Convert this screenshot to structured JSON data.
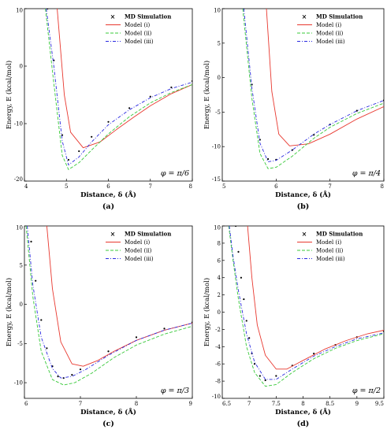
{
  "figure": {
    "panels": [
      {
        "caption": "(a)",
        "phi_label": "φ = π/6"
      },
      {
        "caption": "(b)",
        "phi_label": "φ = π/4"
      },
      {
        "caption": "(c)",
        "phi_label": "φ = π/3"
      },
      {
        "caption": "(d)",
        "phi_label": "φ = π/2"
      }
    ]
  },
  "colors": {
    "md_simulation": "#000000",
    "model_i": "#e8382f",
    "model_ii": "#38c93a",
    "model_iii": "#2a2ae0"
  },
  "chart_data": [
    {
      "type": "line",
      "xlabel": "Distance, δ (Å)",
      "ylabel": "Energy, E (kcal/mol)",
      "xlim": [
        4,
        8
      ],
      "ylim": [
        -20,
        10
      ],
      "xticks": [
        "4",
        "5",
        "6",
        "7",
        "8"
      ],
      "yticks": [
        "10",
        "0",
        "-10",
        "-20"
      ],
      "legend": "top-right",
      "series": [
        {
          "name": "MD Simulation",
          "style": "points",
          "x": [
            4.55,
            4.7,
            4.9,
            5.05,
            5.3,
            5.6,
            6.0,
            6.5,
            7.0,
            7.5,
            8.0
          ],
          "y": [
            10,
            1,
            -12,
            -16.3,
            -14.8,
            -12.3,
            -9.7,
            -7.3,
            -5.3,
            -3.7,
            -2.6
          ]
        },
        {
          "name": "Model (i)",
          "style": "solid",
          "x": [
            4.78,
            4.95,
            5.1,
            5.4,
            5.8,
            6.2,
            6.6,
            7.0,
            7.5,
            8.0
          ],
          "y": [
            10,
            -5,
            -11.5,
            -14.2,
            -13.2,
            -11.0,
            -8.9,
            -6.9,
            -4.8,
            -3.2
          ]
        },
        {
          "name": "Model (ii)",
          "style": "dashed",
          "x": [
            4.5,
            4.7,
            4.9,
            5.05,
            5.3,
            5.6,
            6.0,
            6.5,
            7.0,
            7.5,
            8.0
          ],
          "y": [
            10,
            -3,
            -15.5,
            -18.0,
            -16.8,
            -14.6,
            -11.8,
            -8.8,
            -6.4,
            -4.6,
            -3.2
          ]
        },
        {
          "name": "Model (iii)",
          "style": "dashdot",
          "x": [
            4.52,
            4.7,
            4.9,
            5.05,
            5.3,
            5.6,
            6.0,
            6.5,
            7.0,
            7.5,
            8.0
          ],
          "y": [
            10,
            0,
            -13,
            -17.2,
            -15.8,
            -13.2,
            -10.2,
            -7.6,
            -5.5,
            -3.9,
            -2.8
          ]
        }
      ]
    },
    {
      "type": "line",
      "xlabel": "Distance, δ (Å)",
      "ylabel": "Energy, E (kcal/mol)",
      "xlim": [
        5,
        8
      ],
      "ylim": [
        -15,
        10
      ],
      "xticks": [
        "5",
        "6",
        "7",
        "8"
      ],
      "yticks": [
        "10",
        "5",
        "0",
        "-5",
        "-10",
        "-15"
      ],
      "legend": "top-right",
      "series": [
        {
          "name": "MD Simulation",
          "style": "points",
          "x": [
            5.4,
            5.55,
            5.7,
            5.85,
            6.0,
            6.3,
            6.7,
            7.0,
            7.5,
            8.0
          ],
          "y": [
            10,
            -1,
            -9,
            -11.8,
            -11.9,
            -10.5,
            -8.3,
            -6.8,
            -4.8,
            -3.3
          ]
        },
        {
          "name": "Model (i)",
          "style": "solid",
          "x": [
            5.82,
            5.92,
            6.05,
            6.25,
            6.6,
            7.0,
            7.5,
            8.0
          ],
          "y": [
            10,
            -2,
            -8.2,
            -9.9,
            -9.6,
            -8.2,
            -6.0,
            -4.2
          ]
        },
        {
          "name": "Model (ii)",
          "style": "dashed",
          "x": [
            5.38,
            5.55,
            5.7,
            5.85,
            6.0,
            6.3,
            6.7,
            7.0,
            7.5,
            8.0
          ],
          "y": [
            10,
            -3,
            -11,
            -13.2,
            -13.0,
            -11.4,
            -8.8,
            -7.2,
            -5.2,
            -3.7
          ]
        },
        {
          "name": "Model (iii)",
          "style": "dashdot",
          "x": [
            5.4,
            5.55,
            5.7,
            5.85,
            6.0,
            6.3,
            6.7,
            7.0,
            7.5,
            8.0
          ],
          "y": [
            10,
            -1.5,
            -9.5,
            -12.2,
            -12.0,
            -10.5,
            -8.2,
            -6.8,
            -4.8,
            -3.3
          ]
        }
      ]
    },
    {
      "type": "line",
      "xlabel": "Distance, δ (Å)",
      "ylabel": "Energy, E (kcal/mol)",
      "xlim": [
        6,
        9
      ],
      "ylim": [
        -12,
        10
      ],
      "xticks": [
        "6",
        "7",
        "8",
        "9"
      ],
      "yticks": [
        "10",
        "5",
        "0",
        "-5",
        "-10"
      ],
      "legend": "top-right",
      "series": [
        {
          "name": "MD Simulation",
          "style": "points",
          "x": [
            6.12,
            6.2,
            6.3,
            6.4,
            6.5,
            6.6,
            6.7,
            6.85,
            7.0,
            7.5,
            8.0,
            8.5,
            9.0
          ],
          "y": [
            8,
            3.0,
            -2.0,
            -5.6,
            -7.9,
            -9.2,
            -9.4,
            -9.0,
            -8.3,
            -6.0,
            -4.2,
            -3.1,
            -2.3
          ]
        },
        {
          "name": "Model (i)",
          "style": "solid",
          "x": [
            6.4,
            6.5,
            6.65,
            6.85,
            7.05,
            7.3,
            7.6,
            8.0,
            8.5,
            9.0
          ],
          "y": [
            10,
            2.0,
            -4.8,
            -7.6,
            -7.9,
            -7.2,
            -6.0,
            -4.6,
            -3.3,
            -2.4
          ]
        },
        {
          "name": "Model (ii)",
          "style": "dashed",
          "x": [
            6.03,
            6.15,
            6.3,
            6.5,
            6.7,
            6.9,
            7.2,
            7.6,
            8.0,
            8.5,
            9.0
          ],
          "y": [
            10,
            1.0,
            -6.0,
            -9.6,
            -10.3,
            -10.0,
            -8.8,
            -6.8,
            -5.2,
            -3.8,
            -2.8
          ]
        },
        {
          "name": "Model (iii)",
          "style": "dashdot",
          "x": [
            6.05,
            6.15,
            6.3,
            6.5,
            6.65,
            6.85,
            7.1,
            7.5,
            8.0,
            8.5,
            9.0
          ],
          "y": [
            10,
            2.5,
            -4.2,
            -8.2,
            -9.4,
            -9.2,
            -8.3,
            -6.5,
            -4.6,
            -3.3,
            -2.4
          ]
        }
      ]
    },
    {
      "type": "line",
      "xlabel": "Distance, δ (Å)",
      "ylabel": "Energy, E (kcal/mol)",
      "xlim": [
        6.5,
        9.5
      ],
      "ylim": [
        -10,
        10
      ],
      "xticks": [
        "6.5",
        "7",
        "7.5",
        "8",
        "8.5",
        "9",
        "9.5"
      ],
      "yticks": [
        "10",
        "8",
        "6",
        "4",
        "2",
        "0",
        "-2",
        "-4",
        "-6",
        "-8",
        "-10"
      ],
      "legend": "top-right",
      "series": [
        {
          "name": "MD Simulation",
          "style": "points",
          "x": [
            6.75,
            6.8,
            6.85,
            6.9,
            6.95,
            7.0,
            7.05,
            7.1,
            7.2,
            7.3,
            7.5,
            7.8,
            8.2,
            8.6,
            9.0,
            9.5
          ],
          "y": [
            10,
            7.0,
            4.0,
            1.5,
            -1.0,
            -3.0,
            -4.8,
            -6.0,
            -7.4,
            -7.9,
            -7.4,
            -6.2,
            -4.8,
            -3.8,
            -2.9,
            -2.2
          ]
        },
        {
          "name": "Model (i)",
          "style": "solid",
          "x": [
            6.97,
            7.05,
            7.15,
            7.3,
            7.5,
            7.7,
            8.0,
            8.4,
            8.8,
            9.2,
            9.5
          ],
          "y": [
            10,
            4.0,
            -1.5,
            -5.0,
            -6.6,
            -6.6,
            -5.6,
            -4.3,
            -3.3,
            -2.5,
            -2.1
          ]
        },
        {
          "name": "Model (ii)",
          "style": "dashed",
          "x": [
            6.62,
            6.7,
            6.8,
            6.95,
            7.1,
            7.3,
            7.5,
            7.8,
            8.2,
            8.6,
            9.0,
            9.5
          ],
          "y": [
            10,
            6.0,
            1.5,
            -4.0,
            -7.0,
            -8.6,
            -8.4,
            -7.0,
            -5.4,
            -4.2,
            -3.3,
            -2.5
          ]
        },
        {
          "name": "Model (iii)",
          "style": "dashdot",
          "x": [
            6.63,
            6.7,
            6.8,
            6.95,
            7.1,
            7.3,
            7.5,
            7.8,
            8.2,
            8.6,
            9.0,
            9.5
          ],
          "y": [
            10,
            6.5,
            2.5,
            -2.5,
            -5.8,
            -7.8,
            -7.8,
            -6.6,
            -5.1,
            -4.0,
            -3.1,
            -2.4
          ]
        }
      ]
    }
  ]
}
